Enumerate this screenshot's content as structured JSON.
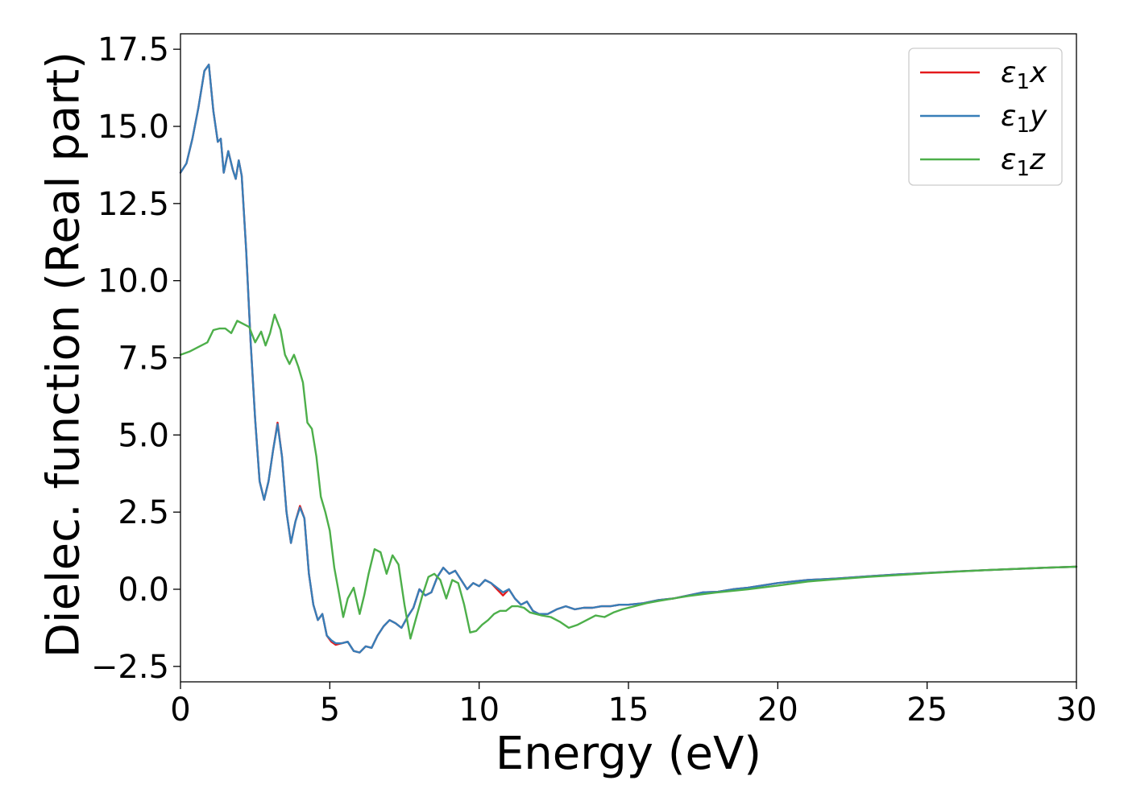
{
  "chart_data": {
    "type": "line",
    "title": "",
    "xlabel": "Energy (eV)",
    "ylabel": "Dielec. function (Real part)",
    "xlim": [
      0,
      30
    ],
    "ylim": [
      -3.0,
      18.0
    ],
    "xticks": [
      0,
      5,
      10,
      15,
      20,
      25,
      30
    ],
    "xtick_labels": [
      "0",
      "5",
      "10",
      "15",
      "20",
      "25",
      "30"
    ],
    "yticks": [
      -2.5,
      0.0,
      2.5,
      5.0,
      7.5,
      10.0,
      12.5,
      15.0,
      17.5
    ],
    "ytick_labels": [
      "−2.5",
      "0.0",
      "2.5",
      "5.0",
      "7.5",
      "10.0",
      "12.5",
      "15.0",
      "17.5"
    ],
    "grid": false,
    "legend": {
      "placement": "top-right"
    },
    "series": [
      {
        "name": "ε₁x",
        "legend_symbol": "ε",
        "legend_sub": "1",
        "legend_var": "x",
        "color": "#e41a1c",
        "x": [
          0,
          0.2,
          0.4,
          0.6,
          0.8,
          0.95,
          1.1,
          1.25,
          1.35,
          1.45,
          1.6,
          1.75,
          1.85,
          1.95,
          2.05,
          2.2,
          2.35,
          2.5,
          2.65,
          2.8,
          2.95,
          3.1,
          3.25,
          3.4,
          3.55,
          3.7,
          3.85,
          4.0,
          4.15,
          4.3,
          4.45,
          4.6,
          4.75,
          4.9,
          5.05,
          5.2,
          5.4,
          5.6,
          5.8,
          6.0,
          6.2,
          6.4,
          6.6,
          6.8,
          7.0,
          7.2,
          7.4,
          7.6,
          7.8,
          8.0,
          8.2,
          8.4,
          8.6,
          8.8,
          9.0,
          9.2,
          9.4,
          9.6,
          9.8,
          10.0,
          10.2,
          10.4,
          10.6,
          10.8,
          11.0,
          11.2,
          11.4,
          11.6,
          11.8,
          12.0,
          12.3,
          12.6,
          12.9,
          13.2,
          13.5,
          13.8,
          14.1,
          14.4,
          14.7,
          15.0,
          15.5,
          16.0,
          16.5,
          17.0,
          17.5,
          18.0,
          18.5,
          19.0,
          20.0,
          21.0,
          22.0,
          23.0,
          24.0,
          25.0,
          26.0,
          27.0,
          28.0,
          29.0,
          30.0
        ],
        "y": [
          13.5,
          13.8,
          14.6,
          15.6,
          16.8,
          17.0,
          15.5,
          14.5,
          14.6,
          13.5,
          14.2,
          13.6,
          13.3,
          13.9,
          13.4,
          11.0,
          8.0,
          5.5,
          3.5,
          2.9,
          3.5,
          4.5,
          5.4,
          4.3,
          2.5,
          1.5,
          2.2,
          2.7,
          2.3,
          0.5,
          -0.5,
          -1.0,
          -0.8,
          -1.5,
          -1.7,
          -1.8,
          -1.75,
          -1.7,
          -2.0,
          -2.05,
          -1.85,
          -1.9,
          -1.5,
          -1.2,
          -1.0,
          -1.1,
          -1.25,
          -0.9,
          -0.6,
          0.0,
          -0.2,
          -0.1,
          0.4,
          0.7,
          0.5,
          0.6,
          0.3,
          0.0,
          0.2,
          0.1,
          0.3,
          0.2,
          0.0,
          -0.2,
          0.0,
          -0.3,
          -0.5,
          -0.4,
          -0.7,
          -0.8,
          -0.8,
          -0.65,
          -0.55,
          -0.65,
          -0.6,
          -0.6,
          -0.55,
          -0.55,
          -0.5,
          -0.5,
          -0.45,
          -0.35,
          -0.3,
          -0.2,
          -0.1,
          -0.08,
          0.0,
          0.05,
          0.2,
          0.3,
          0.35,
          0.42,
          0.48,
          0.53,
          0.58,
          0.62,
          0.66,
          0.7,
          0.73
        ]
      },
      {
        "name": "ε₁y",
        "legend_symbol": "ε",
        "legend_sub": "1",
        "legend_var": "y",
        "color": "#377eb8",
        "x": [
          0,
          0.2,
          0.4,
          0.6,
          0.8,
          0.95,
          1.1,
          1.25,
          1.35,
          1.45,
          1.6,
          1.75,
          1.85,
          1.95,
          2.05,
          2.2,
          2.35,
          2.5,
          2.65,
          2.8,
          2.95,
          3.1,
          3.25,
          3.4,
          3.55,
          3.7,
          3.85,
          4.0,
          4.15,
          4.3,
          4.45,
          4.6,
          4.75,
          4.9,
          5.05,
          5.2,
          5.4,
          5.6,
          5.8,
          6.0,
          6.2,
          6.4,
          6.6,
          6.8,
          7.0,
          7.2,
          7.4,
          7.6,
          7.8,
          8.0,
          8.2,
          8.4,
          8.6,
          8.8,
          9.0,
          9.2,
          9.4,
          9.6,
          9.8,
          10.0,
          10.2,
          10.4,
          10.6,
          10.8,
          11.0,
          11.2,
          11.4,
          11.6,
          11.8,
          12.0,
          12.3,
          12.6,
          12.9,
          13.2,
          13.5,
          13.8,
          14.1,
          14.4,
          14.7,
          15.0,
          15.5,
          16.0,
          16.5,
          17.0,
          17.5,
          18.0,
          18.5,
          19.0,
          20.0,
          21.0,
          22.0,
          23.0,
          24.0,
          25.0,
          26.0,
          27.0,
          28.0,
          29.0,
          30.0
        ],
        "y": [
          13.5,
          13.8,
          14.6,
          15.6,
          16.8,
          17.0,
          15.5,
          14.5,
          14.6,
          13.5,
          14.2,
          13.6,
          13.3,
          13.9,
          13.4,
          11.0,
          8.0,
          5.5,
          3.5,
          2.9,
          3.5,
          4.5,
          5.35,
          4.3,
          2.5,
          1.5,
          2.2,
          2.65,
          2.3,
          0.5,
          -0.5,
          -1.0,
          -0.8,
          -1.5,
          -1.65,
          -1.75,
          -1.75,
          -1.7,
          -2.0,
          -2.05,
          -1.85,
          -1.9,
          -1.5,
          -1.2,
          -1.0,
          -1.1,
          -1.25,
          -0.9,
          -0.6,
          0.0,
          -0.2,
          -0.1,
          0.4,
          0.7,
          0.5,
          0.6,
          0.3,
          0.0,
          0.2,
          0.1,
          0.3,
          0.2,
          0.05,
          -0.1,
          0.0,
          -0.3,
          -0.5,
          -0.4,
          -0.7,
          -0.8,
          -0.8,
          -0.65,
          -0.55,
          -0.65,
          -0.6,
          -0.6,
          -0.55,
          -0.55,
          -0.5,
          -0.5,
          -0.45,
          -0.35,
          -0.3,
          -0.2,
          -0.1,
          -0.08,
          0.0,
          0.05,
          0.2,
          0.3,
          0.35,
          0.42,
          0.48,
          0.53,
          0.58,
          0.62,
          0.66,
          0.7,
          0.73
        ]
      },
      {
        "name": "ε₁z",
        "legend_symbol": "ε",
        "legend_sub": "1",
        "legend_var": "z",
        "color": "#4daf4a",
        "x": [
          0,
          0.3,
          0.6,
          0.9,
          1.1,
          1.3,
          1.5,
          1.7,
          1.9,
          2.1,
          2.3,
          2.5,
          2.7,
          2.85,
          3.0,
          3.15,
          3.35,
          3.5,
          3.65,
          3.8,
          3.95,
          4.1,
          4.25,
          4.4,
          4.55,
          4.7,
          4.85,
          5.0,
          5.15,
          5.3,
          5.45,
          5.6,
          5.8,
          6.0,
          6.15,
          6.3,
          6.5,
          6.7,
          6.9,
          7.1,
          7.3,
          7.5,
          7.7,
          7.9,
          8.1,
          8.3,
          8.5,
          8.7,
          8.9,
          9.1,
          9.3,
          9.5,
          9.7,
          9.9,
          10.1,
          10.3,
          10.5,
          10.7,
          10.9,
          11.1,
          11.3,
          11.5,
          11.7,
          11.9,
          12.1,
          12.4,
          12.7,
          13.0,
          13.3,
          13.6,
          13.9,
          14.2,
          14.5,
          14.8,
          15.2,
          15.6,
          16.0,
          16.5,
          17.0,
          17.5,
          18.0,
          18.5,
          19.0,
          20.0,
          21.0,
          22.0,
          23.0,
          24.0,
          25.0,
          26.0,
          27.0,
          28.0,
          29.0,
          30.0
        ],
        "y": [
          7.6,
          7.7,
          7.85,
          8.0,
          8.4,
          8.45,
          8.45,
          8.3,
          8.7,
          8.6,
          8.5,
          8.0,
          8.35,
          7.9,
          8.3,
          8.9,
          8.4,
          7.6,
          7.3,
          7.6,
          7.2,
          6.7,
          5.4,
          5.2,
          4.3,
          3.0,
          2.5,
          1.9,
          0.7,
          -0.1,
          -0.9,
          -0.3,
          0.05,
          -0.8,
          -0.2,
          0.5,
          1.3,
          1.2,
          0.5,
          1.1,
          0.8,
          -0.5,
          -1.6,
          -0.9,
          -0.2,
          0.4,
          0.5,
          0.3,
          -0.3,
          0.3,
          0.2,
          -0.5,
          -1.4,
          -1.35,
          -1.15,
          -1.0,
          -0.8,
          -0.7,
          -0.7,
          -0.55,
          -0.55,
          -0.6,
          -0.75,
          -0.8,
          -0.85,
          -0.9,
          -1.05,
          -1.25,
          -1.15,
          -1.0,
          -0.85,
          -0.9,
          -0.75,
          -0.65,
          -0.55,
          -0.45,
          -0.38,
          -0.3,
          -0.22,
          -0.16,
          -0.1,
          -0.05,
          0.0,
          0.12,
          0.25,
          0.33,
          0.4,
          0.46,
          0.52,
          0.57,
          0.62,
          0.66,
          0.7,
          0.73
        ]
      }
    ]
  }
}
